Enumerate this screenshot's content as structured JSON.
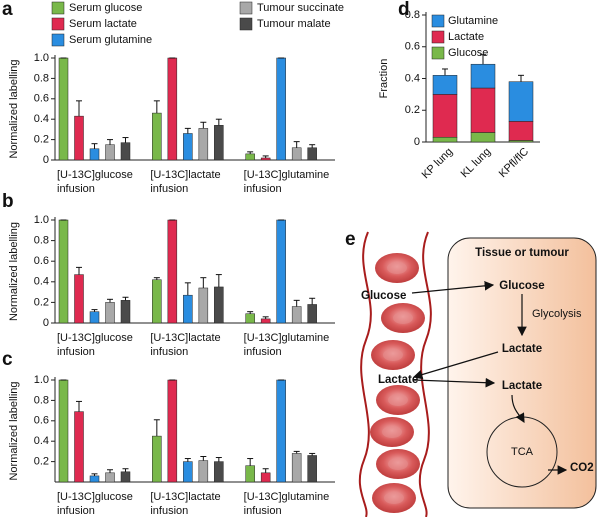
{
  "chart_data": [
    {
      "type": "grouped_bar",
      "panel_label": "a",
      "ylabel": "Normalized labelling",
      "categories": [
        "[U-13C]glucose infusion",
        "[U-13C]lactate infusion",
        "[U-13C]glutamine infusion"
      ],
      "ylim": [
        0,
        1
      ],
      "yticks": [
        0,
        0.2,
        0.4,
        0.6,
        0.8,
        {
          "value": 1,
          "label": "1.0"
        }
      ],
      "series": [
        {
          "name": "Serum glucose",
          "color": "#79b84a",
          "values": [
            1.0,
            0.46,
            0.06
          ],
          "errors": [
            0,
            0.12,
            0.02
          ]
        },
        {
          "name": "Serum lactate",
          "color": "#df2a50",
          "values": [
            0.43,
            1.0,
            0.02
          ],
          "errors": [
            0.15,
            0,
            0.02
          ]
        },
        {
          "name": "Serum glutamine",
          "color": "#2a8de0",
          "values": [
            0.11,
            0.26,
            1.0
          ],
          "errors": [
            0.05,
            0.05,
            0
          ]
        },
        {
          "name": "Tumour succinate",
          "color": "#a8a8a8",
          "values": [
            0.15,
            0.31,
            0.12
          ],
          "errors": [
            0.05,
            0.06,
            0.06
          ]
        },
        {
          "name": "Tumour malate",
          "color": "#4a4a4a",
          "values": [
            0.17,
            0.34,
            0.12
          ],
          "errors": [
            0.05,
            0.06,
            0.03
          ]
        }
      ]
    },
    {
      "type": "grouped_bar",
      "panel_label": "b",
      "ylabel": "Normalized labelling",
      "categories": [
        "[U-13C]glucose infusion",
        "[U-13C]lactate infusion",
        "[U-13C]glutamine infusion"
      ],
      "ylim": [
        0,
        1
      ],
      "yticks": [
        0,
        0.2,
        0.4,
        0.6,
        0.8,
        {
          "value": 1,
          "label": "1.0"
        }
      ],
      "series": [
        {
          "color": "#79b84a",
          "values": [
            1.0,
            0.42,
            0.09
          ],
          "errors": [
            0,
            0.02,
            0.02
          ]
        },
        {
          "color": "#df2a50",
          "values": [
            0.47,
            1.0,
            0.04
          ],
          "errors": [
            0.07,
            0,
            0.02
          ]
        },
        {
          "color": "#2a8de0",
          "values": [
            0.11,
            0.27,
            1.0
          ],
          "errors": [
            0.02,
            0.12,
            0
          ]
        },
        {
          "color": "#a8a8a8",
          "values": [
            0.2,
            0.34,
            0.16
          ],
          "errors": [
            0.03,
            0.1,
            0.06
          ]
        },
        {
          "color": "#4a4a4a",
          "values": [
            0.22,
            0.35,
            0.18
          ],
          "errors": [
            0.03,
            0.12,
            0.06
          ]
        }
      ]
    },
    {
      "type": "grouped_bar",
      "panel_label": "c",
      "ylabel": "Normalized labelling",
      "categories": [
        "[U-13C]glucose infusion",
        "[U-13C]lactate infusion",
        "[U-13C]glutamine infusion"
      ],
      "ylim": [
        0,
        1
      ],
      "yticks": [
        0.2,
        0.4,
        0.6,
        0.8,
        {
          "value": 1,
          "label": "1.0"
        }
      ],
      "series": [
        {
          "color": "#79b84a",
          "values": [
            1.0,
            0.45,
            0.16
          ],
          "errors": [
            0,
            0.16,
            0.07
          ]
        },
        {
          "color": "#df2a50",
          "values": [
            0.69,
            1.0,
            0.09
          ],
          "errors": [
            0.1,
            0,
            0.04
          ]
        },
        {
          "color": "#2a8de0",
          "values": [
            0.06,
            0.2,
            1.0
          ],
          "errors": [
            0.02,
            0.03,
            0
          ]
        },
        {
          "color": "#a8a8a8",
          "values": [
            0.09,
            0.21,
            0.28
          ],
          "errors": [
            0.03,
            0.04,
            0.02
          ]
        },
        {
          "color": "#4a4a4a",
          "values": [
            0.1,
            0.2,
            0.26
          ],
          "errors": [
            0.03,
            0.04,
            0.02
          ]
        }
      ]
    },
    {
      "type": "stacked_bar",
      "panel_label": "d",
      "ylabel": "Fraction",
      "categories": [
        "KP lung",
        "KL lung",
        "KPfl/flC"
      ],
      "ylim": [
        0,
        0.8
      ],
      "yticks": [
        0,
        0.2,
        0.4,
        0.6,
        0.8
      ],
      "series": [
        {
          "name": "Glucose",
          "color": "#79b84a",
          "values": [
            0.03,
            0.06,
            0.01
          ],
          "errors": [
            0.05,
            0.04,
            0.03
          ]
        },
        {
          "name": "Lactate",
          "color": "#df2a50",
          "values": [
            0.27,
            0.28,
            0.12
          ],
          "errors": [
            0.05,
            0.06,
            0.04
          ]
        },
        {
          "name": "Glutamine",
          "color": "#2a8de0",
          "values": [
            0.12,
            0.15,
            0.25
          ],
          "errors": [
            0.04,
            0.06,
            0.04
          ]
        }
      ]
    }
  ],
  "diagram": {
    "panel_label": "e",
    "tissue_title": "Tissue or tumour",
    "blood_glucose": "Glucose",
    "blood_lactate": "Lactate",
    "tissue_glucose": "Glucose",
    "glycolysis": "Glycolysis",
    "tissue_lactate_out": "Lactate",
    "tissue_lactate_in": "Lactate",
    "tca": "TCA",
    "co2": "CO2"
  }
}
